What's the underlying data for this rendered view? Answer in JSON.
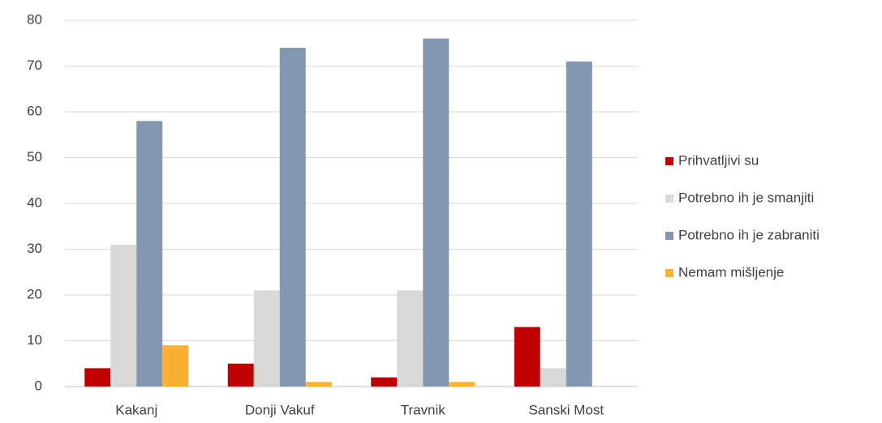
{
  "chart_data": {
    "type": "bar",
    "categories": [
      "Kakanj",
      "Donji Vakuf",
      "Travnik",
      "Sanski Most"
    ],
    "series": [
      {
        "name": "Prihvatljivi su",
        "color": "#c00000",
        "values": [
          4,
          5,
          2,
          13
        ]
      },
      {
        "name": "Potrebno ih je smanjiti",
        "color": "#d9d9d9",
        "values": [
          31,
          21,
          21,
          4
        ]
      },
      {
        "name": "Potrebno ih je zabraniti",
        "color": "#8497b0",
        "values": [
          58,
          74,
          76,
          71
        ]
      },
      {
        "name": "Nemam mišljenje",
        "color": "#fbb034",
        "values": [
          9,
          1,
          1,
          0
        ]
      }
    ],
    "ylim": [
      0,
      80
    ],
    "yticks": [
      0,
      10,
      20,
      30,
      40,
      50,
      60,
      70,
      80
    ],
    "grid": true,
    "legend": "right"
  }
}
